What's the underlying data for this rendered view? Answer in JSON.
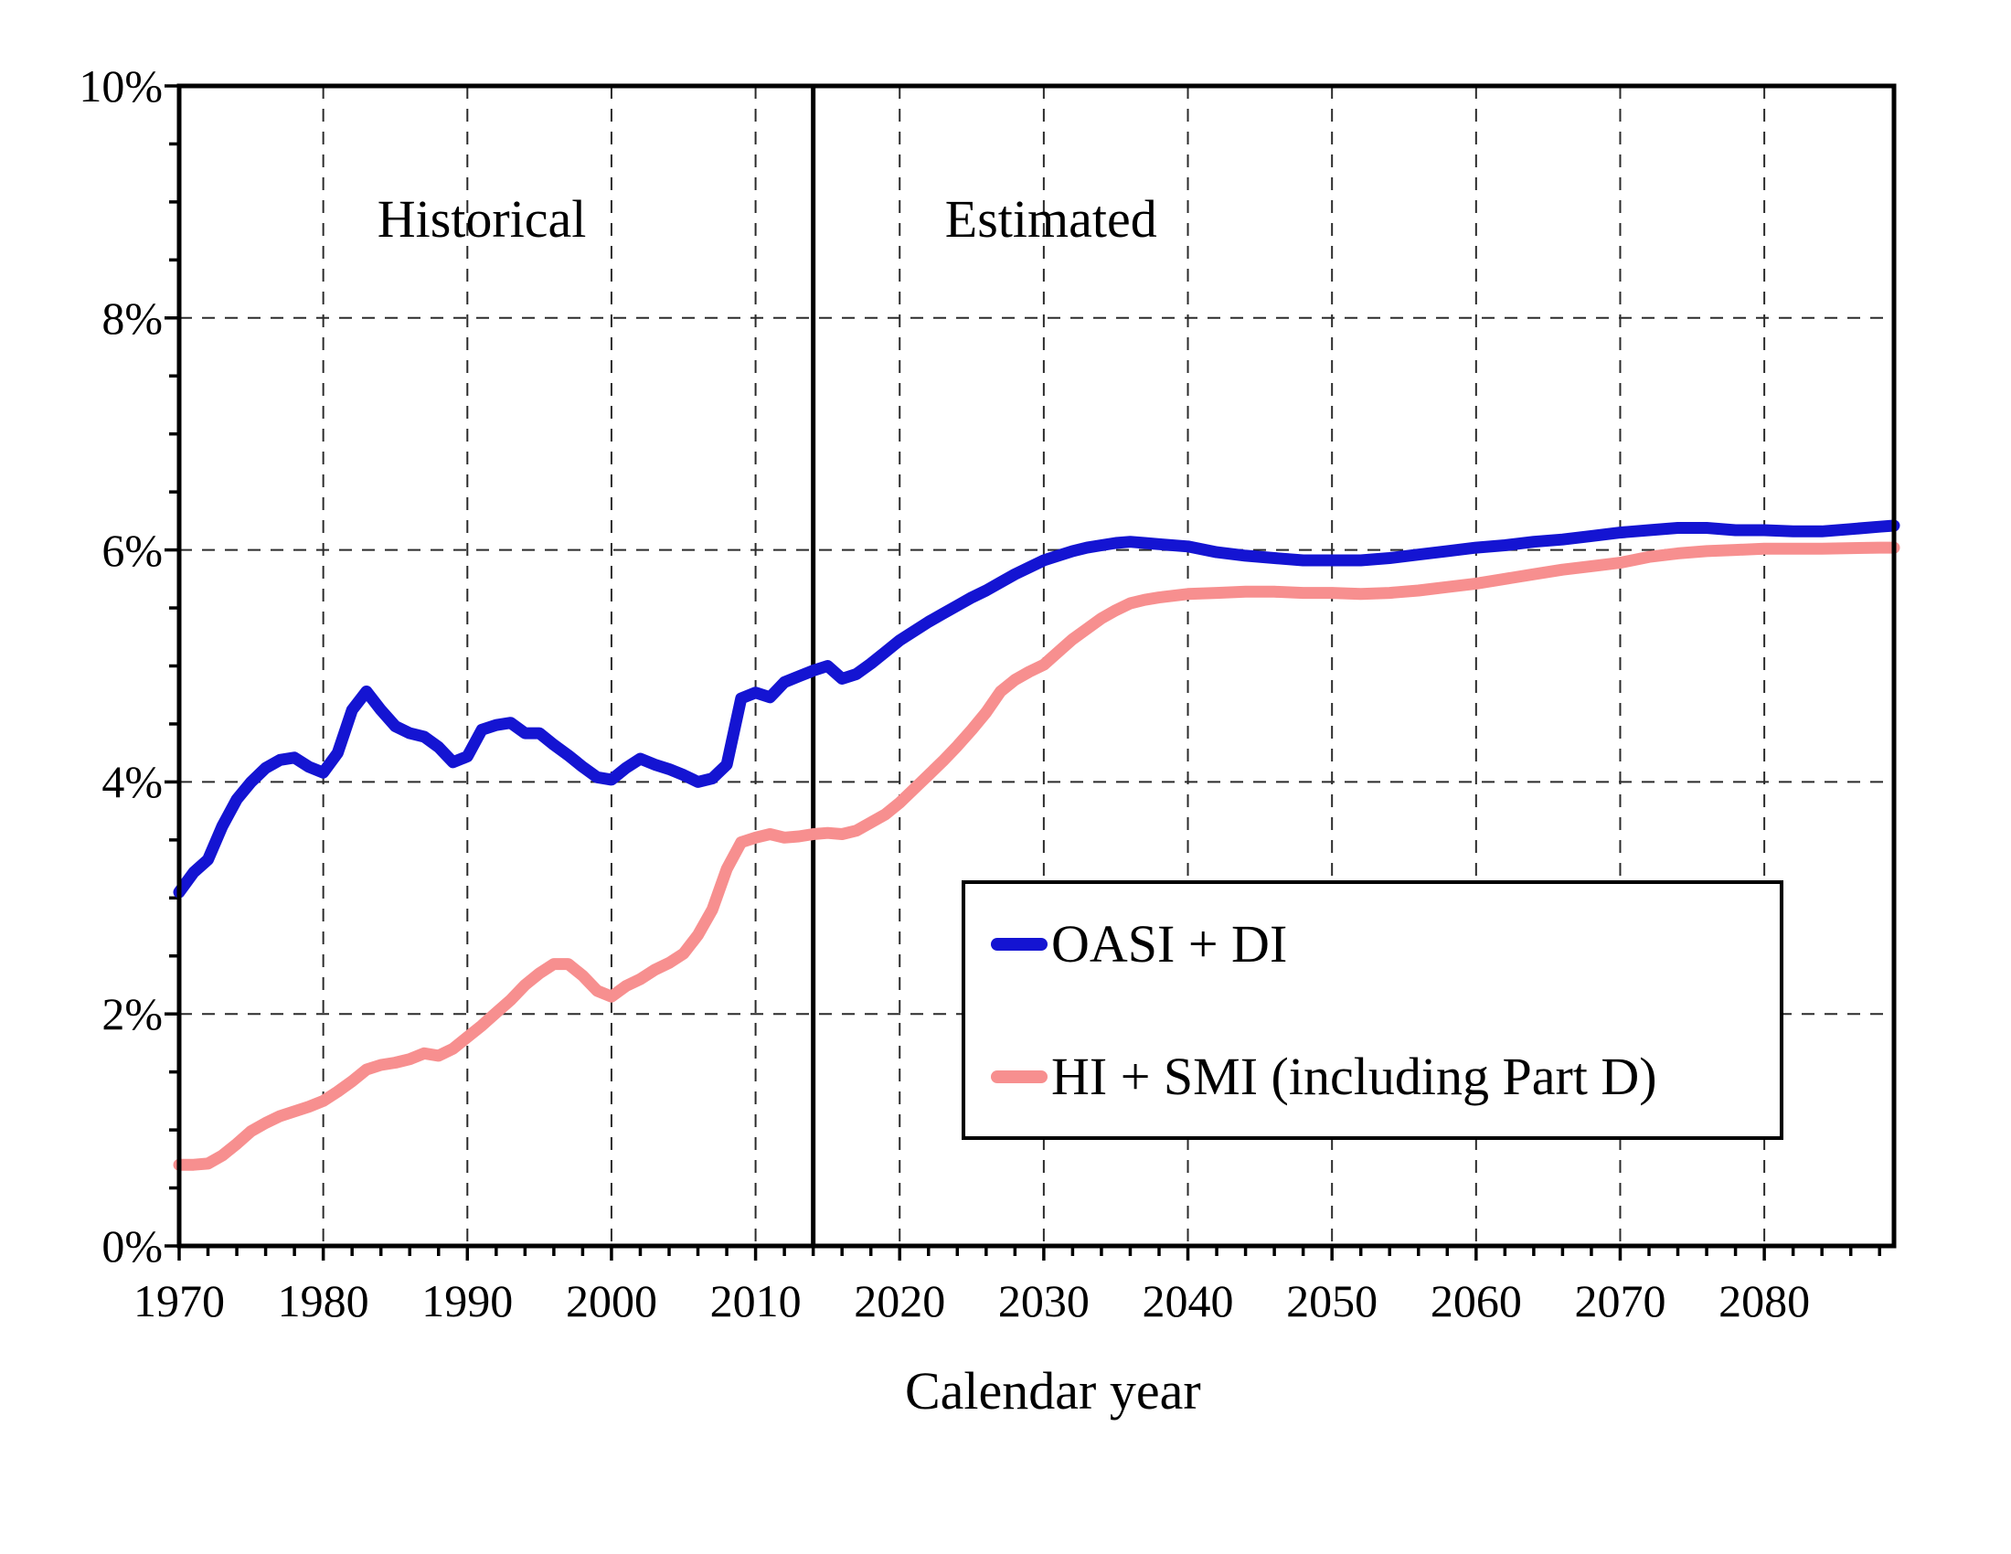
{
  "chart_data": {
    "type": "line",
    "title": "",
    "xlabel": "Calendar year",
    "ylabel": "",
    "x_range": [
      1970,
      2089
    ],
    "y_range": [
      0,
      10
    ],
    "grid": "dashed, every decade vertical, every 2% horizontal",
    "x_ticks": [
      1970,
      1980,
      1990,
      2000,
      2010,
      2020,
      2030,
      2040,
      2050,
      2060,
      2070,
      2080
    ],
    "x_minor_tick_step": 2,
    "y_ticks": [
      0,
      2,
      4,
      6,
      8,
      10
    ],
    "y_tick_labels": [
      "0%",
      "2%",
      "4%",
      "6%",
      "8%",
      "10%"
    ],
    "y_minor_tick_step": 0.5,
    "divider_year": 2014,
    "annotations": [
      {
        "text": "Historical",
        "year": 1991,
        "value": 8.85
      },
      {
        "text": "Estimated",
        "year": 2030.5,
        "value": 8.85
      }
    ],
    "legend": {
      "position": "inside lower right",
      "entries": [
        {
          "label": "OASI + DI",
          "color": "#1414d2"
        },
        {
          "label": "HI + SMI (including Part D)",
          "color": "#f78f8f"
        }
      ]
    },
    "series": [
      {
        "name": "OASI + DI",
        "color": "#1414d2",
        "points": [
          [
            1970,
            3.05
          ],
          [
            1971,
            3.22
          ],
          [
            1972,
            3.33
          ],
          [
            1973,
            3.62
          ],
          [
            1974,
            3.85
          ],
          [
            1975,
            4.0
          ],
          [
            1976,
            4.12
          ],
          [
            1977,
            4.19
          ],
          [
            1978,
            4.21
          ],
          [
            1979,
            4.13
          ],
          [
            1980,
            4.08
          ],
          [
            1981,
            4.25
          ],
          [
            1982,
            4.62
          ],
          [
            1983,
            4.78
          ],
          [
            1984,
            4.62
          ],
          [
            1985,
            4.48
          ],
          [
            1986,
            4.42
          ],
          [
            1987,
            4.39
          ],
          [
            1988,
            4.3
          ],
          [
            1989,
            4.17
          ],
          [
            1990,
            4.22
          ],
          [
            1991,
            4.45
          ],
          [
            1992,
            4.49
          ],
          [
            1993,
            4.51
          ],
          [
            1994,
            4.42
          ],
          [
            1995,
            4.42
          ],
          [
            1996,
            4.32
          ],
          [
            1997,
            4.23
          ],
          [
            1998,
            4.13
          ],
          [
            1999,
            4.04
          ],
          [
            2000,
            4.02
          ],
          [
            2001,
            4.12
          ],
          [
            2002,
            4.2
          ],
          [
            2003,
            4.15
          ],
          [
            2004,
            4.11
          ],
          [
            2005,
            4.06
          ],
          [
            2006,
            4.0
          ],
          [
            2007,
            4.03
          ],
          [
            2008,
            4.15
          ],
          [
            2009,
            4.72
          ],
          [
            2010,
            4.77
          ],
          [
            2011,
            4.73
          ],
          [
            2012,
            4.86
          ],
          [
            2013,
            4.91
          ],
          [
            2014,
            4.96
          ],
          [
            2015,
            5.0
          ],
          [
            2016,
            4.89
          ],
          [
            2017,
            4.93
          ],
          [
            2018,
            5.02
          ],
          [
            2019,
            5.12
          ],
          [
            2020,
            5.22
          ],
          [
            2021,
            5.3
          ],
          [
            2022,
            5.38
          ],
          [
            2023,
            5.45
          ],
          [
            2024,
            5.52
          ],
          [
            2025,
            5.59
          ],
          [
            2026,
            5.65
          ],
          [
            2027,
            5.72
          ],
          [
            2028,
            5.79
          ],
          [
            2029,
            5.85
          ],
          [
            2030,
            5.91
          ],
          [
            2031,
            5.95
          ],
          [
            2032,
            5.99
          ],
          [
            2033,
            6.02
          ],
          [
            2034,
            6.04
          ],
          [
            2035,
            6.06
          ],
          [
            2036,
            6.07
          ],
          [
            2037,
            6.06
          ],
          [
            2038,
            6.05
          ],
          [
            2040,
            6.03
          ],
          [
            2042,
            5.98
          ],
          [
            2044,
            5.95
          ],
          [
            2046,
            5.93
          ],
          [
            2048,
            5.91
          ],
          [
            2050,
            5.91
          ],
          [
            2052,
            5.91
          ],
          [
            2054,
            5.93
          ],
          [
            2056,
            5.96
          ],
          [
            2058,
            5.99
          ],
          [
            2060,
            6.02
          ],
          [
            2062,
            6.04
          ],
          [
            2064,
            6.07
          ],
          [
            2066,
            6.09
          ],
          [
            2068,
            6.12
          ],
          [
            2070,
            6.15
          ],
          [
            2072,
            6.17
          ],
          [
            2074,
            6.19
          ],
          [
            2076,
            6.19
          ],
          [
            2078,
            6.17
          ],
          [
            2080,
            6.17
          ],
          [
            2082,
            6.16
          ],
          [
            2084,
            6.16
          ],
          [
            2086,
            6.18
          ],
          [
            2088,
            6.2
          ],
          [
            2089,
            6.21
          ]
        ]
      },
      {
        "name": "HI + SMI (including Part D)",
        "color": "#f78f8f",
        "points": [
          [
            1970,
            0.7
          ],
          [
            1971,
            0.7
          ],
          [
            1972,
            0.71
          ],
          [
            1973,
            0.78
          ],
          [
            1974,
            0.88
          ],
          [
            1975,
            0.99
          ],
          [
            1976,
            1.06
          ],
          [
            1977,
            1.12
          ],
          [
            1978,
            1.16
          ],
          [
            1979,
            1.2
          ],
          [
            1980,
            1.25
          ],
          [
            1981,
            1.33
          ],
          [
            1982,
            1.42
          ],
          [
            1983,
            1.52
          ],
          [
            1984,
            1.56
          ],
          [
            1985,
            1.58
          ],
          [
            1986,
            1.61
          ],
          [
            1987,
            1.66
          ],
          [
            1988,
            1.64
          ],
          [
            1989,
            1.7
          ],
          [
            1990,
            1.8
          ],
          [
            1991,
            1.9
          ],
          [
            1992,
            2.01
          ],
          [
            1993,
            2.12
          ],
          [
            1994,
            2.25
          ],
          [
            1995,
            2.35
          ],
          [
            1996,
            2.43
          ],
          [
            1997,
            2.43
          ],
          [
            1998,
            2.33
          ],
          [
            1999,
            2.2
          ],
          [
            2000,
            2.15
          ],
          [
            2001,
            2.24
          ],
          [
            2002,
            2.3
          ],
          [
            2003,
            2.38
          ],
          [
            2004,
            2.44
          ],
          [
            2005,
            2.52
          ],
          [
            2006,
            2.68
          ],
          [
            2007,
            2.9
          ],
          [
            2008,
            3.25
          ],
          [
            2009,
            3.48
          ],
          [
            2010,
            3.52
          ],
          [
            2011,
            3.55
          ],
          [
            2012,
            3.52
          ],
          [
            2013,
            3.53
          ],
          [
            2014,
            3.55
          ],
          [
            2015,
            3.56
          ],
          [
            2016,
            3.55
          ],
          [
            2017,
            3.58
          ],
          [
            2018,
            3.65
          ],
          [
            2019,
            3.72
          ],
          [
            2020,
            3.82
          ],
          [
            2021,
            3.94
          ],
          [
            2022,
            4.06
          ],
          [
            2023,
            4.18
          ],
          [
            2024,
            4.31
          ],
          [
            2025,
            4.45
          ],
          [
            2026,
            4.6
          ],
          [
            2027,
            4.78
          ],
          [
            2028,
            4.88
          ],
          [
            2029,
            4.95
          ],
          [
            2030,
            5.01
          ],
          [
            2031,
            5.12
          ],
          [
            2032,
            5.23
          ],
          [
            2033,
            5.32
          ],
          [
            2034,
            5.41
          ],
          [
            2035,
            5.48
          ],
          [
            2036,
            5.54
          ],
          [
            2037,
            5.57
          ],
          [
            2038,
            5.59
          ],
          [
            2040,
            5.62
          ],
          [
            2042,
            5.63
          ],
          [
            2044,
            5.64
          ],
          [
            2046,
            5.64
          ],
          [
            2048,
            5.63
          ],
          [
            2050,
            5.63
          ],
          [
            2052,
            5.62
          ],
          [
            2054,
            5.63
          ],
          [
            2056,
            5.65
          ],
          [
            2058,
            5.68
          ],
          [
            2060,
            5.71
          ],
          [
            2062,
            5.75
          ],
          [
            2064,
            5.79
          ],
          [
            2066,
            5.83
          ],
          [
            2068,
            5.86
          ],
          [
            2070,
            5.89
          ],
          [
            2072,
            5.94
          ],
          [
            2074,
            5.97
          ],
          [
            2076,
            5.99
          ],
          [
            2078,
            6.0
          ],
          [
            2080,
            6.01
          ],
          [
            2084,
            6.01
          ],
          [
            2088,
            6.02
          ],
          [
            2089,
            6.02
          ]
        ]
      }
    ],
    "styles": {
      "frame_color": "#000000",
      "grid_color": "#2b2b2b",
      "divider_color": "#000000",
      "background": "#ffffff"
    }
  }
}
